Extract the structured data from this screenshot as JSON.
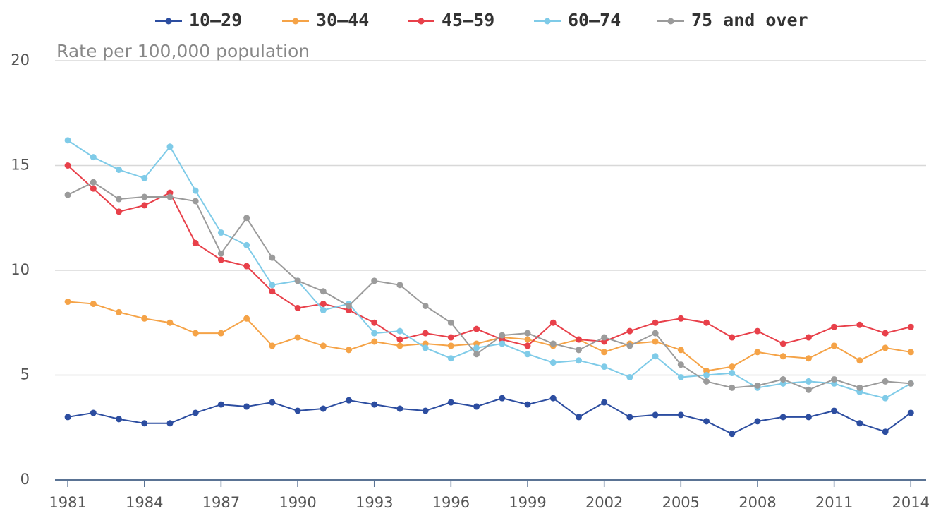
{
  "chart_data": {
    "type": "line",
    "y_label": "Rate per 100,000 population",
    "x": [
      1981,
      1982,
      1983,
      1984,
      1985,
      1986,
      1987,
      1988,
      1989,
      1990,
      1991,
      1992,
      1993,
      1994,
      1995,
      1996,
      1997,
      1998,
      1999,
      2000,
      2001,
      2002,
      2003,
      2004,
      2005,
      2006,
      2007,
      2008,
      2009,
      2010,
      2011,
      2012,
      2013,
      2014
    ],
    "xlim": [
      1980.5,
      2014.6
    ],
    "xticks": [
      1981,
      1984,
      1987,
      1990,
      1993,
      1996,
      1999,
      2002,
      2005,
      2008,
      2011,
      2014
    ],
    "ylim": [
      0,
      20
    ],
    "yticks": [
      0,
      5,
      10,
      15,
      20
    ],
    "grid": true,
    "legend": "top",
    "series": [
      {
        "name": "10–29",
        "color": "#2c4da0",
        "values": [
          3.0,
          3.2,
          2.9,
          2.7,
          2.7,
          3.2,
          3.6,
          3.5,
          3.7,
          3.3,
          3.4,
          3.8,
          3.6,
          3.4,
          3.3,
          3.7,
          3.5,
          3.9,
          3.6,
          3.9,
          3.0,
          3.7,
          3.0,
          3.1,
          3.1,
          2.8,
          2.2,
          2.8,
          3.0,
          3.0,
          3.3,
          2.7,
          2.3,
          3.2
        ]
      },
      {
        "name": "30–44",
        "color": "#f5a347",
        "values": [
          8.5,
          8.4,
          8.0,
          7.7,
          7.5,
          7.0,
          7.0,
          7.7,
          6.4,
          6.8,
          6.4,
          6.2,
          6.6,
          6.4,
          6.5,
          6.4,
          6.5,
          6.8,
          6.7,
          6.4,
          6.7,
          6.1,
          6.5,
          6.6,
          6.2,
          5.2,
          5.4,
          6.1,
          5.9,
          5.8,
          6.4,
          5.7,
          6.3,
          6.1
        ]
      },
      {
        "name": "45–59",
        "color": "#e8404a",
        "values": [
          15.0,
          13.9,
          12.8,
          13.1,
          13.7,
          11.3,
          10.5,
          10.2,
          9.0,
          8.2,
          8.4,
          8.1,
          7.5,
          6.7,
          7.0,
          6.8,
          7.2,
          6.7,
          6.4,
          7.5,
          6.7,
          6.6,
          7.1,
          7.5,
          7.7,
          7.5,
          6.8,
          7.1,
          6.5,
          6.8,
          7.3,
          7.4,
          7.0,
          7.3
        ]
      },
      {
        "name": "60–74",
        "color": "#7fcbe8",
        "values": [
          16.2,
          15.4,
          14.8,
          14.4,
          15.9,
          13.8,
          11.8,
          11.2,
          9.3,
          9.5,
          8.1,
          8.4,
          7.0,
          7.1,
          6.3,
          5.8,
          6.3,
          6.5,
          6.0,
          5.6,
          5.7,
          5.4,
          4.9,
          5.9,
          4.9,
          5.0,
          5.1,
          4.4,
          4.6,
          4.7,
          4.6,
          4.2,
          3.9,
          4.6
        ]
      },
      {
        "name": "75 and over",
        "color": "#9b9b9b",
        "values": [
          13.6,
          14.2,
          13.4,
          13.5,
          13.5,
          13.3,
          10.8,
          12.5,
          10.6,
          9.5,
          9.0,
          8.3,
          9.5,
          9.3,
          8.3,
          7.5,
          6.0,
          6.9,
          7.0,
          6.5,
          6.2,
          6.8,
          6.4,
          7.0,
          5.5,
          4.7,
          4.4,
          4.5,
          4.8,
          4.3,
          4.8,
          4.4,
          4.7,
          4.6
        ]
      }
    ]
  }
}
